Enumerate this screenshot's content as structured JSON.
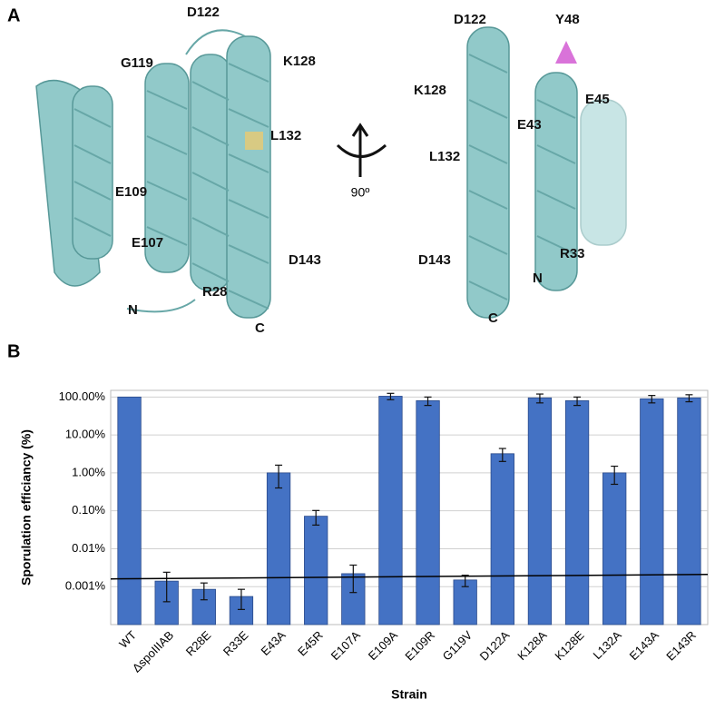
{
  "figure": {
    "panel_a": {
      "label": "A",
      "rotation": "90º",
      "left_labels": [
        "D122",
        "G119",
        "K128",
        "L132",
        "E109",
        "E107",
        "D143",
        "R28",
        "N",
        "C"
      ],
      "right_labels": [
        "D122",
        "Y48",
        "K128",
        "E43",
        "E45",
        "L132",
        "D143",
        "R33",
        "N",
        "C"
      ]
    },
    "panel_b": {
      "label": "B"
    }
  },
  "chart_data": {
    "type": "bar",
    "log_scale": true,
    "grid": true,
    "color": "#4472c4",
    "xlabel": "Strain",
    "ylabel": "Sporulation efficiancy (%)",
    "categories": [
      "WT",
      "ΔspoIIIAB",
      "R28E",
      "R33E",
      "E43A",
      "E45R",
      "E107A",
      "E109A",
      "E109R",
      "G119V",
      "D122A",
      "K128A",
      "K128E",
      "L132A",
      "E143A",
      "E143R"
    ],
    "values": [
      100,
      0.0014,
      0.00085,
      0.00055,
      1.0,
      0.072,
      0.0022,
      105,
      80,
      0.0015,
      3.2,
      95,
      80,
      1.0,
      90,
      95
    ],
    "errors": [
      null,
      0.001,
      0.0004,
      0.0003,
      0.6,
      0.03,
      0.0015,
      20,
      20,
      0.0005,
      1.2,
      25,
      20,
      0.5,
      20,
      20
    ],
    "reference_line": [
      0.0016,
      0.0021
    ],
    "ylim": [
      0.0001,
      150
    ],
    "yticks": [
      {
        "value": 0.001,
        "label": "0.001%"
      },
      {
        "value": 0.01,
        "label": "0.01%"
      },
      {
        "value": 0.1,
        "label": "0.10%"
      },
      {
        "value": 1,
        "label": "1.00%"
      },
      {
        "value": 10,
        "label": "10.00%"
      },
      {
        "value": 100,
        "label": "100.00%"
      }
    ]
  }
}
